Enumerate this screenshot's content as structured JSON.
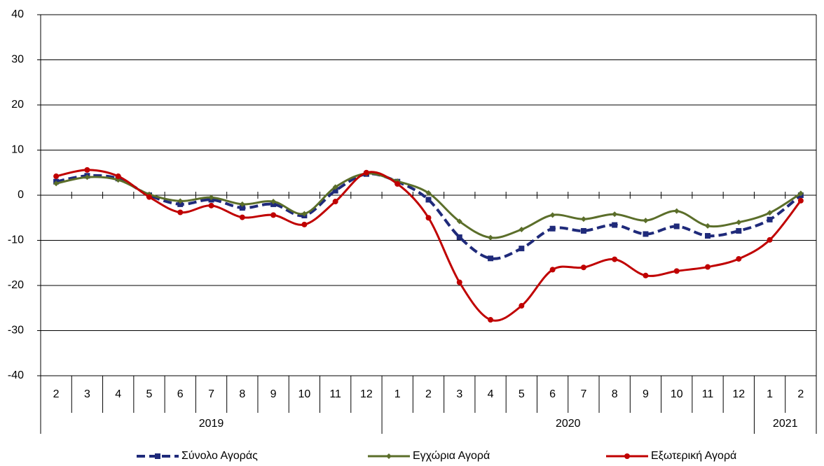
{
  "chart_data": {
    "type": "line",
    "categories": [
      "2",
      "3",
      "4",
      "5",
      "6",
      "7",
      "8",
      "9",
      "10",
      "11",
      "12",
      "1",
      "2",
      "3",
      "4",
      "5",
      "6",
      "7",
      "8",
      "9",
      "10",
      "11",
      "12",
      "1",
      "2"
    ],
    "year_labels": [
      "2019",
      "2020",
      "2021"
    ],
    "ylim": [
      -40,
      40
    ],
    "yticks": [
      -40,
      -30,
      -20,
      -10,
      0,
      10,
      20,
      30,
      40
    ],
    "grid": true,
    "legend": "bottom",
    "series": [
      {
        "name": "Σύνολο Αγοράς",
        "color": "#1f2a7a",
        "dash": true,
        "marker": "square",
        "values": [
          3.0,
          4.3,
          3.7,
          0,
          -2.0,
          -1.0,
          -2.8,
          -2.0,
          -4.5,
          1.0,
          4.7,
          3.0,
          -1.0,
          -9.3,
          -14.0,
          -11.8,
          -7.4,
          -7.9,
          -6.6,
          -8.6,
          -6.9,
          -9.0,
          -7.9,
          -5.4,
          0
        ]
      },
      {
        "name": "Εγχώρια Αγορά",
        "color": "#5b6e2a",
        "dash": false,
        "marker": "diamond",
        "values": [
          2.6,
          4.0,
          3.4,
          0.2,
          -1.3,
          -0.5,
          -2.0,
          -1.4,
          -4.1,
          1.8,
          4.8,
          3.1,
          0.5,
          -5.8,
          -9.4,
          -7.6,
          -4.4,
          -5.3,
          -4.2,
          -5.6,
          -3.5,
          -6.8,
          -6.0,
          -3.9,
          0.4
        ]
      },
      {
        "name": "Εξωτερική Αγορά",
        "color": "#c00000",
        "dash": false,
        "marker": "circle",
        "values": [
          4.2,
          5.6,
          4.2,
          -0.4,
          -3.8,
          -2.3,
          -4.9,
          -4.4,
          -6.5,
          -1.4,
          5.0,
          2.5,
          -5.0,
          -19.3,
          -27.6,
          -24.5,
          -16.5,
          -16.0,
          -14.2,
          -17.8,
          -16.8,
          -15.9,
          -14.1,
          -9.9,
          -1.2
        ]
      }
    ]
  }
}
